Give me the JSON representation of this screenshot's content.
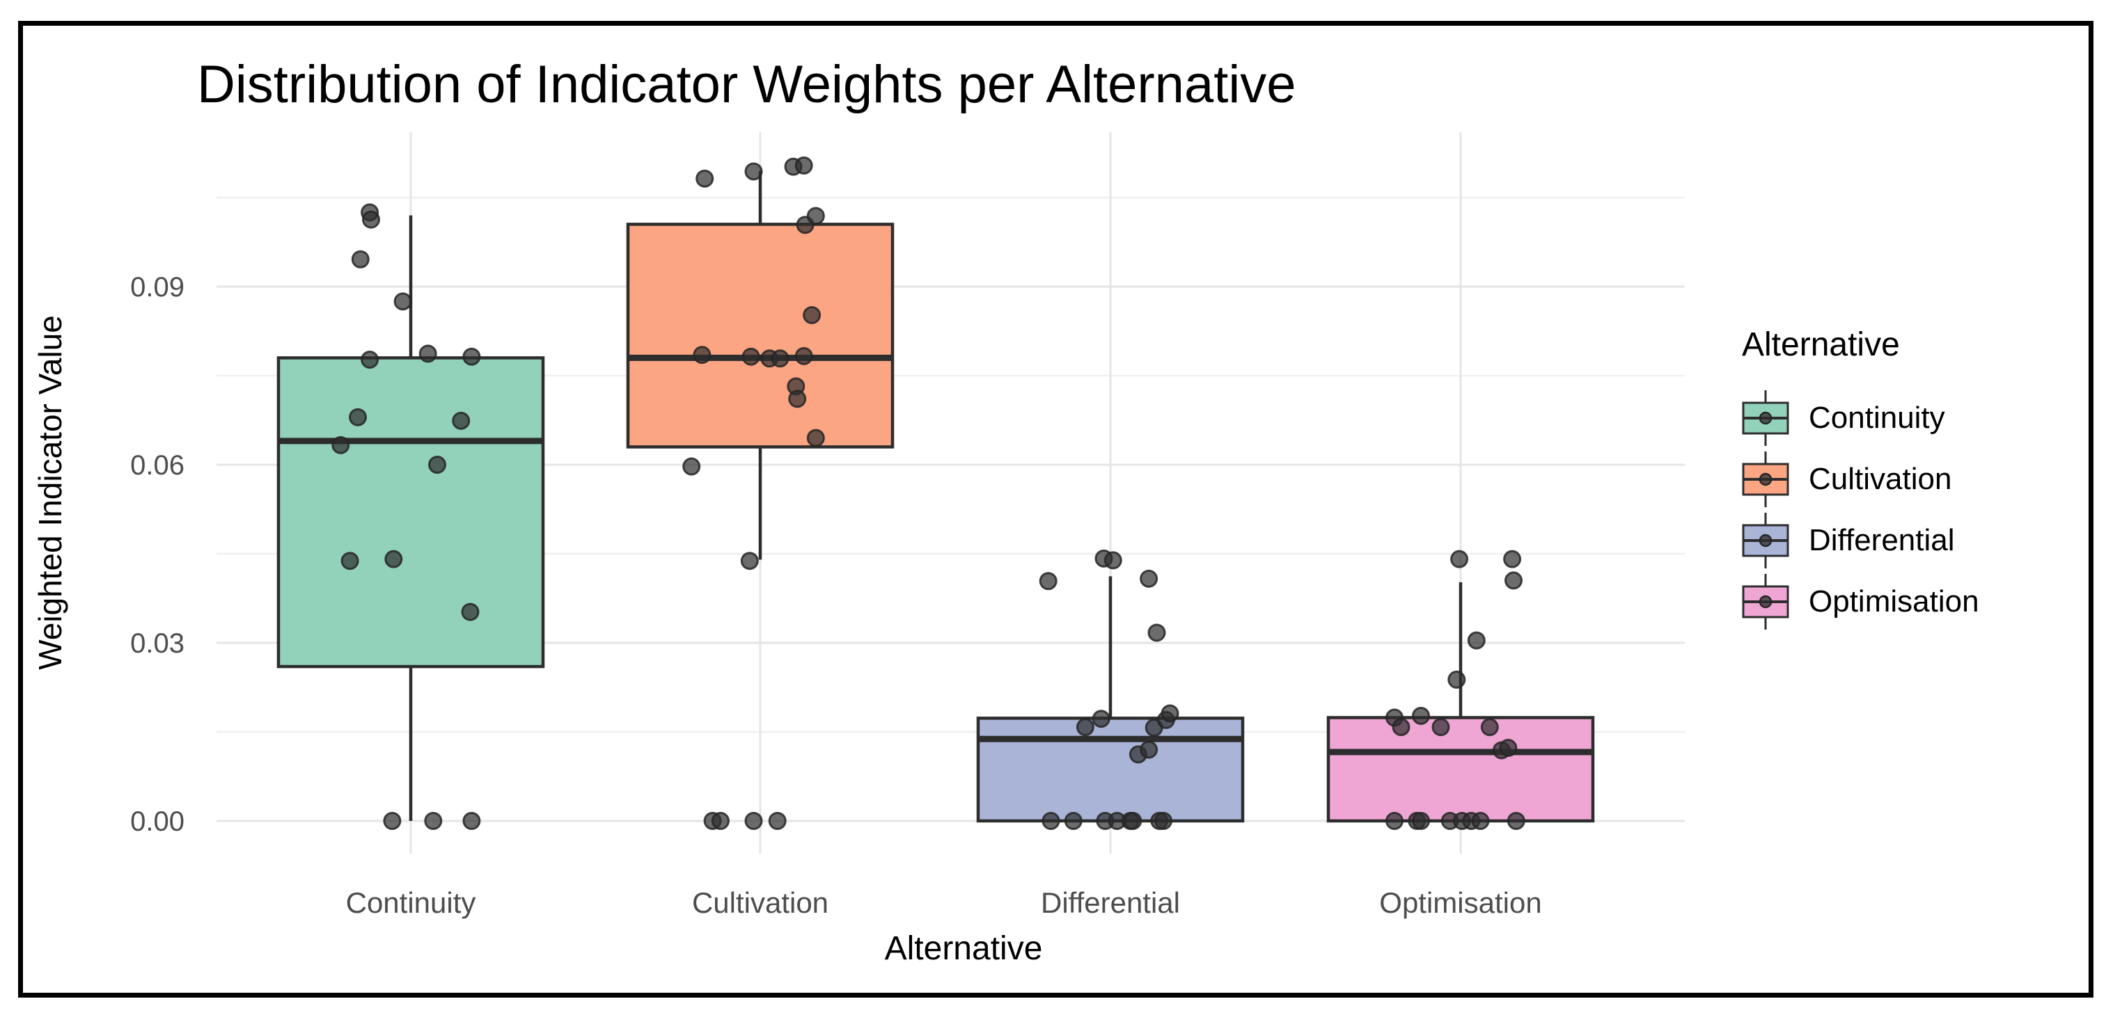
{
  "chart_data": {
    "type": "boxplot",
    "title": "Distribution of Indicator Weights per Alternative",
    "xlabel": "Alternative",
    "ylabel": "Weighted Indicator Value",
    "legend": {
      "title": "Alternative",
      "position": "right",
      "entries": [
        "Continuity",
        "Cultivation",
        "Differential",
        "Optimisation"
      ]
    },
    "categories": [
      "Continuity",
      "Cultivation",
      "Differential",
      "Optimisation"
    ],
    "y_axis": {
      "ticks": [
        {
          "value": 0.0,
          "label": "0.00"
        },
        {
          "value": 0.03,
          "label": "0.03"
        },
        {
          "value": 0.06,
          "label": "0.06"
        },
        {
          "value": 0.09,
          "label": "0.09"
        }
      ],
      "minor_ticks": [
        0.015,
        0.045,
        0.075,
        0.105
      ],
      "range": [
        0.0,
        0.116
      ],
      "grid": "on",
      "major_grid_color": "#e5e5e5",
      "minor_grid_color": "#efefef"
    },
    "series": [
      {
        "name": "Continuity",
        "fill": "#92d2bb",
        "box": {
          "whisker_low": 0.0,
          "q1": 0.026,
          "median": 0.064,
          "q3": 0.078,
          "whisker_high": 0.102
        },
        "points": [
          [
            -0.31,
            0.1025
          ],
          [
            -0.3,
            0.1013
          ],
          [
            -0.38,
            0.0946
          ],
          [
            -0.06,
            0.0875
          ],
          [
            -0.31,
            0.0777
          ],
          [
            0.13,
            0.0787
          ],
          [
            0.46,
            0.0782
          ],
          [
            -0.4,
            0.068
          ],
          [
            0.38,
            0.0674
          ],
          [
            -0.53,
            0.0633
          ],
          [
            0.2,
            0.06
          ],
          [
            -0.46,
            0.0438
          ],
          [
            -0.13,
            0.0441
          ],
          [
            0.45,
            0.0352
          ],
          [
            -0.14,
            0.0
          ],
          [
            0.17,
            0.0
          ],
          [
            0.46,
            0.0
          ]
        ]
      },
      {
        "name": "Cultivation",
        "fill": "#fca582",
        "box": {
          "whisker_low": 0.044,
          "q1": 0.063,
          "median": 0.078,
          "q3": 0.1005,
          "whisker_high": 0.1095
        },
        "points": [
          [
            -0.42,
            0.1082
          ],
          [
            -0.05,
            0.1094
          ],
          [
            0.25,
            0.1102
          ],
          [
            0.33,
            0.1104
          ],
          [
            0.34,
            0.1004
          ],
          [
            0.42,
            0.1019
          ],
          [
            0.39,
            0.0852
          ],
          [
            -0.44,
            0.0785
          ],
          [
            -0.07,
            0.0782
          ],
          [
            0.07,
            0.0779
          ],
          [
            0.15,
            0.0779
          ],
          [
            0.33,
            0.0783
          ],
          [
            0.27,
            0.0732
          ],
          [
            0.28,
            0.0711
          ],
          [
            0.42,
            0.0645
          ],
          [
            -0.52,
            0.0597
          ],
          [
            -0.08,
            0.0438
          ],
          [
            -0.36,
            0.0
          ],
          [
            -0.3,
            0.0
          ],
          [
            -0.05,
            0.0
          ],
          [
            0.13,
            0.0
          ]
        ]
      },
      {
        "name": "Differential",
        "fill": "#a9b4d6",
        "box": {
          "whisker_low": 0.0,
          "q1": 0.0,
          "median": 0.0138,
          "q3": 0.0173,
          "whisker_high": 0.0412
        },
        "points": [
          [
            -0.05,
            0.0442
          ],
          [
            0.02,
            0.0439
          ],
          [
            -0.47,
            0.0404
          ],
          [
            0.29,
            0.0408
          ],
          [
            0.35,
            0.0317
          ],
          [
            -0.19,
            0.0158
          ],
          [
            -0.07,
            0.0172
          ],
          [
            0.33,
            0.0157
          ],
          [
            0.42,
            0.017
          ],
          [
            0.45,
            0.0181
          ],
          [
            0.21,
            0.0112
          ],
          [
            0.29,
            0.012
          ],
          [
            -0.45,
            0.0
          ],
          [
            -0.28,
            0.0
          ],
          [
            -0.04,
            0.0
          ],
          [
            0.05,
            0.0
          ],
          [
            0.15,
            0.0
          ],
          [
            0.17,
            0.0
          ],
          [
            0.37,
            0.0
          ],
          [
            0.4,
            0.0
          ]
        ]
      },
      {
        "name": "Optimisation",
        "fill": "#efa6d4",
        "box": {
          "whisker_low": 0.0,
          "q1": 0.0,
          "median": 0.0116,
          "q3": 0.0174,
          "whisker_high": 0.0402
        },
        "points": [
          [
            -0.01,
            0.0441
          ],
          [
            0.39,
            0.0441
          ],
          [
            0.4,
            0.0405
          ],
          [
            0.12,
            0.0304
          ],
          [
            -0.03,
            0.0238
          ],
          [
            -0.5,
            0.0174
          ],
          [
            -0.45,
            0.0158
          ],
          [
            -0.3,
            0.0177
          ],
          [
            -0.15,
            0.0158
          ],
          [
            0.22,
            0.0158
          ],
          [
            0.31,
            0.0119
          ],
          [
            0.36,
            0.0123
          ],
          [
            -0.5,
            0.0
          ],
          [
            -0.33,
            0.0
          ],
          [
            -0.3,
            0.0
          ],
          [
            -0.08,
            0.0
          ],
          [
            0.01,
            0.0
          ],
          [
            0.08,
            0.0
          ],
          [
            0.15,
            0.0
          ],
          [
            0.42,
            0.0
          ]
        ]
      }
    ],
    "style": {
      "box_stroke": "#2d2d2d",
      "point_fill": "#2e2e2e",
      "point_stroke": "#262626",
      "tick_label_color": "#4d4d4d",
      "title_color": "#000000",
      "frame_color": "#000000"
    }
  }
}
